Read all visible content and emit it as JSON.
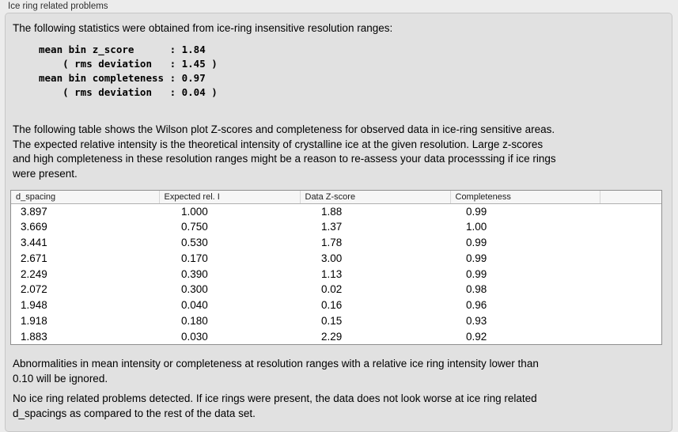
{
  "panel": {
    "title": "Ice ring related problems"
  },
  "intro_text": "The following statistics were obtained from ice-ring insensitive resolution ranges:",
  "stats_block": "mean bin z_score      : 1.84\n    ( rms deviation   : 1.45 )\nmean bin completeness : 0.97\n    ( rms deviation   : 0.04 )",
  "table_description": "The following table shows the Wilson plot Z-scores and completeness for observed data in ice-ring sensitive areas.\nThe expected relative intensity is the theoretical intensity of crystalline ice at the given resolution. Large z-scores\nand high completeness in these resolution ranges might be a reason to re-assess your data processsing if ice rings\nwere present.",
  "chart_data": {
    "type": "table",
    "columns": [
      "d_spacing",
      "Expected rel. I",
      "Data Z-score",
      "Completeness"
    ],
    "rows": [
      [
        "3.897",
        "1.000",
        "1.88",
        "0.99"
      ],
      [
        "3.669",
        "0.750",
        "1.37",
        "1.00"
      ],
      [
        "3.441",
        "0.530",
        "1.78",
        "0.99"
      ],
      [
        "2.671",
        "0.170",
        "3.00",
        "0.99"
      ],
      [
        "2.249",
        "0.390",
        "1.13",
        "0.99"
      ],
      [
        "2.072",
        "0.300",
        "0.02",
        "0.98"
      ],
      [
        "1.948",
        "0.040",
        "0.16",
        "0.96"
      ],
      [
        "1.918",
        "0.180",
        "0.15",
        "0.93"
      ],
      [
        "1.883",
        "0.030",
        "2.29",
        "0.92"
      ]
    ]
  },
  "footnote_text": "Abnormalities in mean intensity or completeness at resolution ranges with a relative ice ring intensity lower than\n0.10 will be ignored.",
  "conclusion_text": "No ice ring related problems detected. If ice rings were present, the data does not look worse at ice ring related\nd_spacings as compared to the rest of the data set."
}
